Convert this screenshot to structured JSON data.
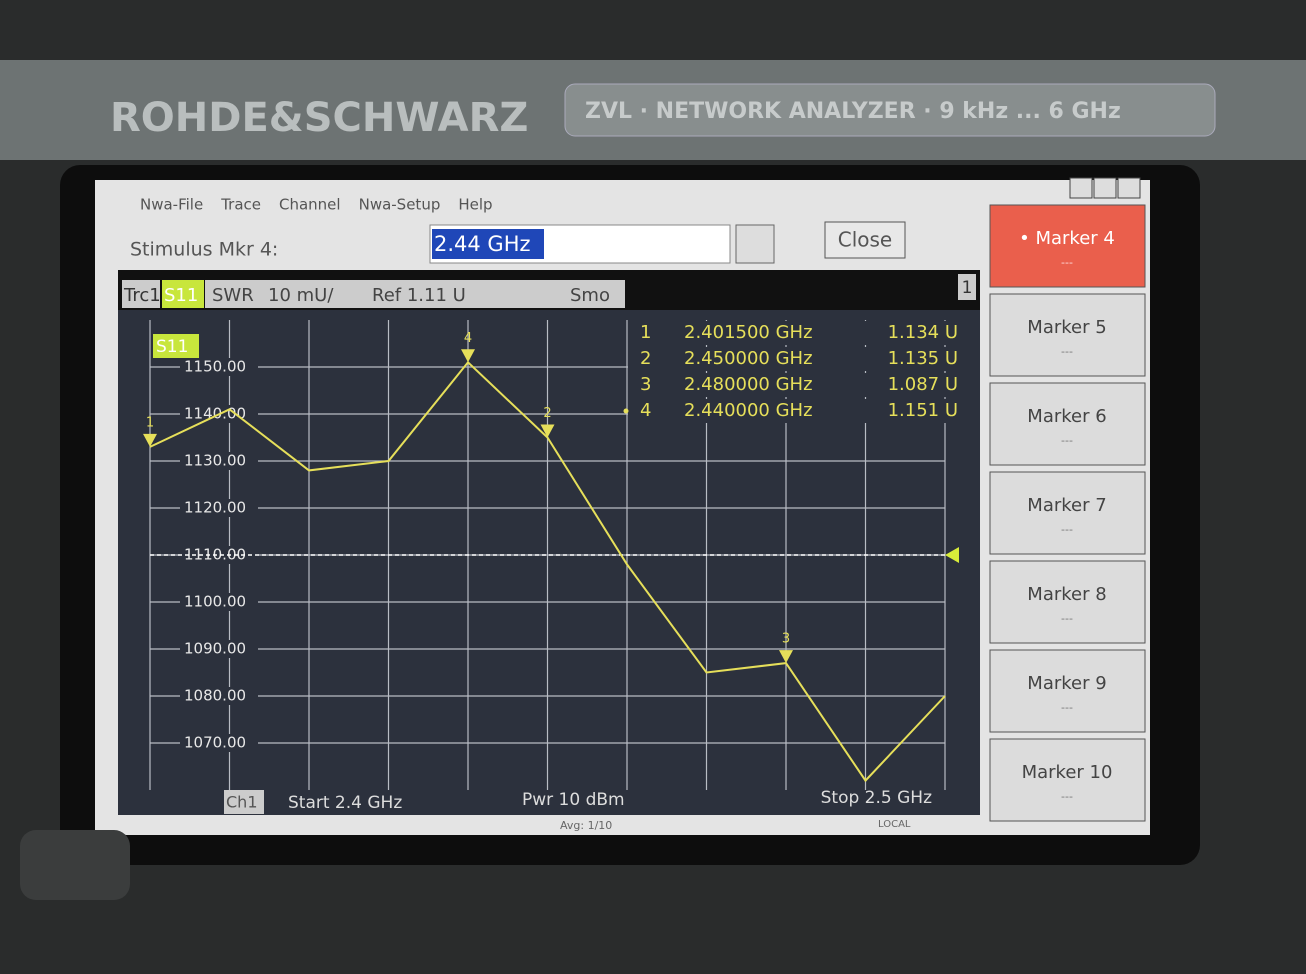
{
  "header": {
    "brand": "ROHDE&SCHWARZ",
    "model": "ZVL · NETWORK ANALYZER · 9 kHz ... 6 GHz"
  },
  "menu": [
    "Nwa-File",
    "Trace",
    "Channel",
    "Nwa-Setup",
    "Help"
  ],
  "stimulus": {
    "label": "Stimulus Mkr 4:",
    "value": "2.44 GHz",
    "close": "Close"
  },
  "trace_header": {
    "trace": "Trc1",
    "param": "S11",
    "format": "SWR",
    "scale": "10 mU/",
    "ref": "Ref 1.11 U",
    "smoothing": "Smo",
    "channel_number": "1"
  },
  "chart_data": {
    "type": "line",
    "trace_label": "S11",
    "color": "#e6df5a",
    "x": [
      2.4,
      2.41,
      2.42,
      2.43,
      2.44,
      2.45,
      2.46,
      2.47,
      2.48,
      2.49,
      2.5
    ],
    "values": [
      1133,
      1141,
      1128,
      1130,
      1151,
      1135,
      1108,
      1085,
      1087,
      1062,
      1080
    ],
    "xlim": [
      2.4,
      2.5
    ],
    "ylim": [
      1060,
      1160
    ],
    "yticks": [
      {
        "value": 1150,
        "label": "1150.00"
      },
      {
        "value": 1140,
        "label": "1140.00"
      },
      {
        "value": 1130,
        "label": "1130.00"
      },
      {
        "value": 1120,
        "label": "1120.00"
      },
      {
        "value": 1110,
        "label": "1110.00"
      },
      {
        "value": 1100,
        "label": "1100.00"
      },
      {
        "value": 1090,
        "label": "1090.00"
      },
      {
        "value": 1080,
        "label": "1080.00"
      },
      {
        "value": 1070,
        "label": "1070.00"
      }
    ],
    "ref_line": 1110,
    "grid": true,
    "markers": [
      {
        "number": "1",
        "stimulus": "2.401500 GHz",
        "response": "1.134 U"
      },
      {
        "number": "2",
        "stimulus": "2.450000 GHz",
        "response": "1.135 U"
      },
      {
        "number": "3",
        "stimulus": "2.480000 GHz",
        "response": "1.087 U"
      },
      {
        "number": "4",
        "stimulus": "2.440000 GHz",
        "response": "1.151 U"
      }
    ]
  },
  "footer": {
    "channel": "Ch1",
    "start": "Start 2.4 GHz",
    "power": "Pwr 10 dBm",
    "stop": "Stop 2.5 GHz"
  },
  "status": {
    "avg": "Avg: 1/10",
    "local": "LOCAL"
  },
  "softkeys": [
    {
      "label": "• Marker 4",
      "value": "---"
    },
    {
      "label": "Marker 5",
      "value": "---"
    },
    {
      "label": "Marker 6",
      "value": "---"
    },
    {
      "label": "Marker 7",
      "value": "---"
    },
    {
      "label": "Marker 8",
      "value": "---"
    },
    {
      "label": "Marker 9",
      "value": "---"
    },
    {
      "label": "Marker 10",
      "value": "---"
    }
  ]
}
